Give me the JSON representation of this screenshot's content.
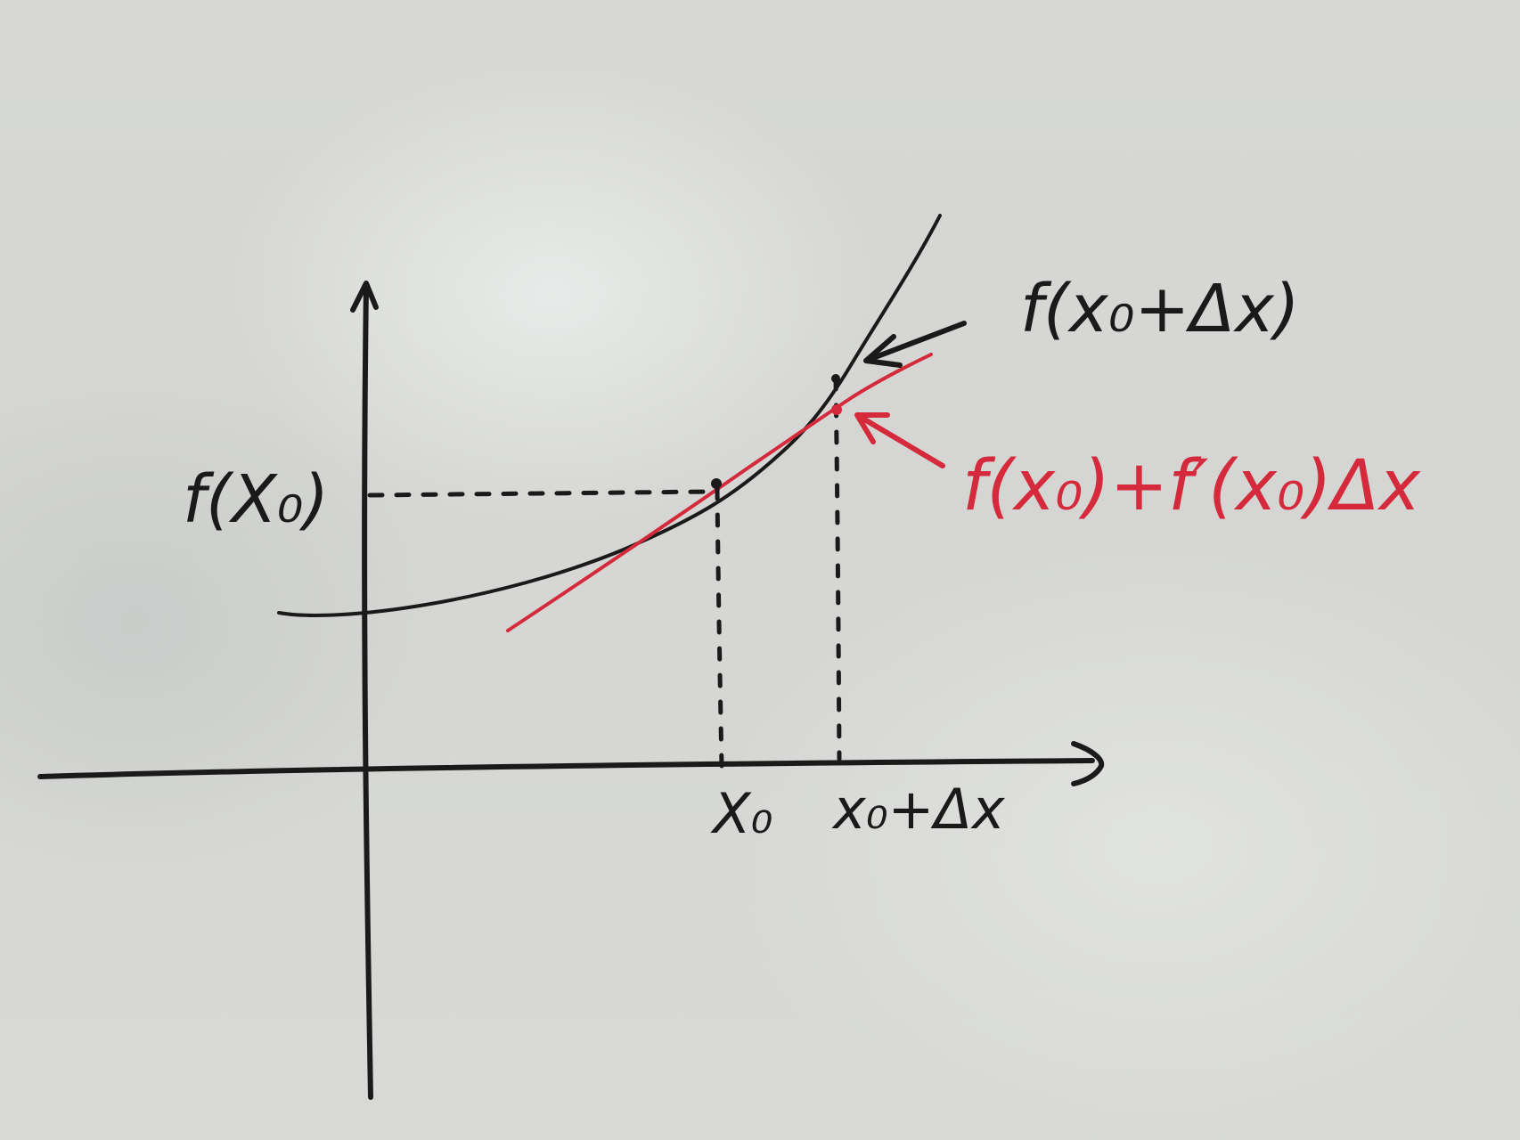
{
  "labels": {
    "f_x0": "f(X₀)",
    "f_x0_dx": "f(x₀+Δx)",
    "tangent_approx": "f(x₀)+f′(x₀)Δx",
    "x0": "X₀",
    "x0_dx": "x₀+Δx"
  },
  "colors": {
    "ink_black": "#1a1a1a",
    "ink_red": "#d42a3c",
    "board": "#d7d8d5"
  }
}
